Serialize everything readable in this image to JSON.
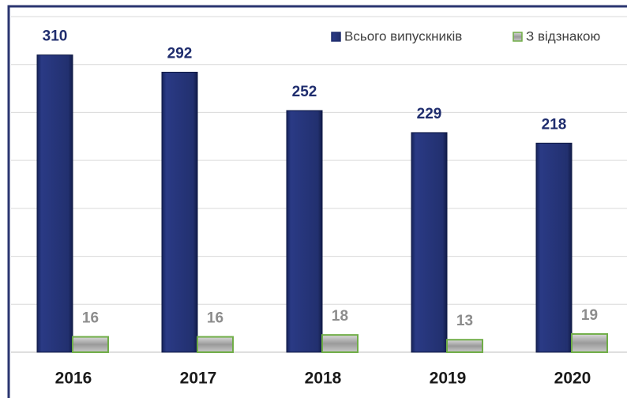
{
  "chart_data": {
    "type": "bar",
    "categories": [
      "2016",
      "2017",
      "2018",
      "2019",
      "2020"
    ],
    "series": [
      {
        "name": "Всього випускників",
        "color": "#1f2d6e",
        "values": [
          310,
          292,
          252,
          229,
          218
        ]
      },
      {
        "name": "З відзнакою",
        "color": "#70ad47",
        "values": [
          16,
          16,
          18,
          13,
          19
        ]
      }
    ],
    "ylim": [
      0,
      350
    ],
    "yticks": [
      0,
      50,
      100,
      150,
      200,
      250,
      300,
      350
    ],
    "grid": true,
    "legend": "top-right"
  }
}
